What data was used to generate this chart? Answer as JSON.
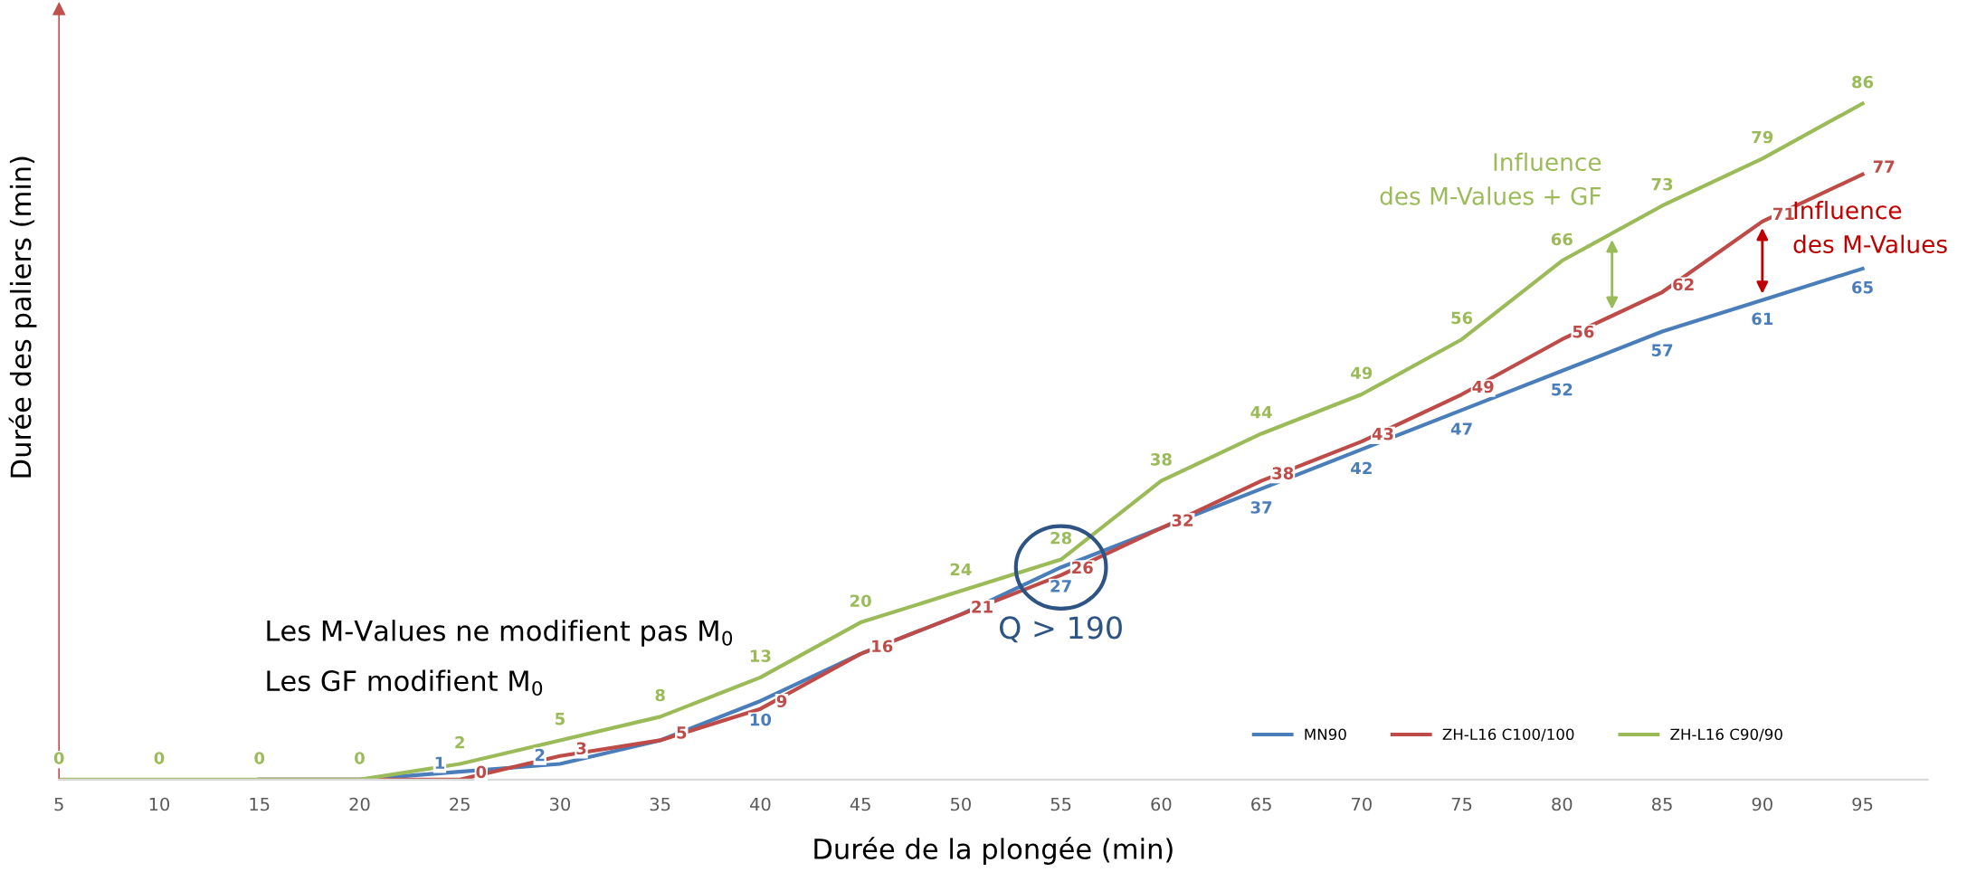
{
  "chart_data": {
    "type": "line",
    "xlabel": "Durée de la plongée (min)",
    "ylabel": "Durée des paliers (min)",
    "categories": [
      "5",
      "10",
      "15",
      "20",
      "25",
      "30",
      "35",
      "40",
      "45",
      "50",
      "55",
      "60",
      "65",
      "70",
      "75",
      "80",
      "85",
      "90",
      "95"
    ],
    "series": [
      {
        "name": "MN90",
        "color": "#4a7ebb",
        "values": [
          null,
          null,
          0,
          0,
          1,
          2,
          5,
          10,
          16,
          21,
          27,
          32,
          37,
          42,
          47,
          52,
          57,
          61,
          65
        ],
        "value_labels": [
          null,
          null,
          null,
          null,
          "1",
          "2",
          null,
          "10",
          null,
          null,
          "27",
          null,
          "37",
          "42",
          "47",
          "52",
          "57",
          "61",
          "65"
        ]
      },
      {
        "name": "ZH-L16 C100/100",
        "color": "#be4b48",
        "values": [
          null,
          null,
          0,
          0,
          0,
          3,
          5,
          9,
          16,
          21,
          26,
          32,
          38,
          43,
          49,
          56,
          62,
          71,
          77
        ],
        "value_labels": [
          null,
          null,
          null,
          null,
          "0",
          "3",
          "5",
          "9",
          "16",
          "21",
          "26",
          "32",
          "38",
          "43",
          "49",
          "56",
          "62",
          "71",
          "77"
        ]
      },
      {
        "name": "ZH-L16 C90/90",
        "color": "#9bbb59",
        "values": [
          0,
          0,
          0,
          0,
          2,
          5,
          8,
          13,
          20,
          24,
          28,
          38,
          44,
          49,
          56,
          66,
          73,
          79,
          86
        ],
        "value_labels": [
          "0",
          "0",
          "0",
          "0",
          "2",
          "5",
          "8",
          "13",
          "20",
          "24",
          "28",
          "38",
          "44",
          "49",
          "56",
          "66",
          "73",
          "79",
          "86"
        ]
      }
    ],
    "legend": "bottom right",
    "grid": false,
    "marker": "none",
    "line_style": "solid",
    "annotations": [
      "Les M-Values ne modifient pas M$_{0}$",
      "Les GF modifient M$_{0}$",
      {
        "text": "Q > 190",
        "x": "55",
        "y": 27
      },
      {
        "text": "Influence\ndes M-Values + GF",
        "x": "80",
        "y": 66
      },
      {
        "text": "Influence\ndes M-Values",
        "x": "90",
        "y": 71
      }
    ]
  }
}
